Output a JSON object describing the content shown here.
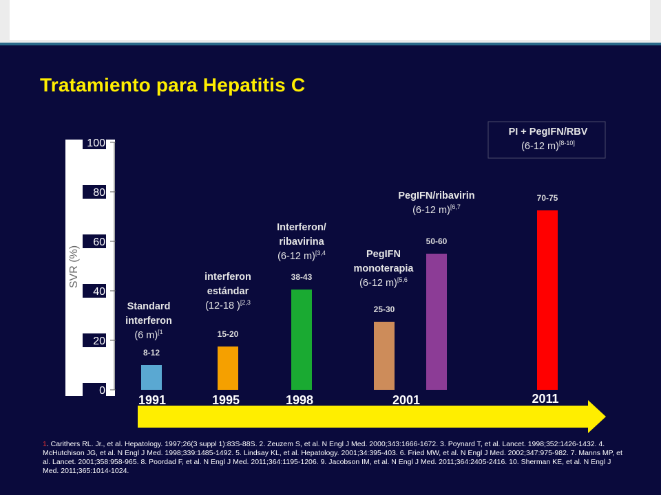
{
  "title": "Tratamiento para Hepatitis C",
  "colors": {
    "background": "#0a0a3c",
    "title": "#ffee00",
    "arrow": "#ffee00"
  },
  "chart_data": {
    "type": "bar",
    "ylabel": "SVR (%)",
    "ylim": [
      0,
      100
    ],
    "yticks": [
      0,
      20,
      40,
      60,
      80,
      100
    ],
    "categories": [
      "Standard interferon",
      "interferon estándar",
      "Interferon/ ribavirina",
      "PegIFN monoterapia",
      "PegIFN/ribavirin",
      "PI + PegIFN/RBV"
    ],
    "values": [
      10,
      17.5,
      40.5,
      27.5,
      55,
      72.5
    ],
    "value_labels": [
      "8-12",
      "15-20",
      "38-43",
      "25-30",
      "50-60",
      "70-75"
    ],
    "colors": [
      "#5aa8d2",
      "#f5a000",
      "#1aaa32",
      "#cd8c5a",
      "#8c3c96",
      "#ff0000"
    ],
    "treatments": [
      {
        "name_lines": [
          "Standard",
          "interferon"
        ],
        "duration": "(6 m)",
        "refs": "[1"
      },
      {
        "name_lines": [
          "interferon",
          "estándar"
        ],
        "duration": "(12-18 )",
        "refs": "[2,3"
      },
      {
        "name_lines": [
          "Interferon/",
          "ribavirina"
        ],
        "duration": "(6-12 m)",
        "refs": "[3,4"
      },
      {
        "name_lines": [
          "PegIFN",
          "monoterapia"
        ],
        "duration": "(6-12 m)",
        "refs": "[5,6"
      },
      {
        "name_lines": [
          "PegIFN/ribavirin"
        ],
        "duration": "(6-12 m)",
        "refs": "[6,7"
      },
      {
        "name_lines": [
          "PI + PegIFN/RBV"
        ],
        "duration": "(6-12 m)",
        "refs": "[8-10]"
      }
    ],
    "years": [
      "1991",
      "1995",
      "1998",
      "2001",
      "2011"
    ]
  },
  "references": {
    "lead_number": "1",
    "text": ". Carithers RL. Jr., et al. Hepatology. 1997;26(3 suppl 1):83S-88S. 2. Zeuzem S, et al. N Engl J Med. 2000;343:1666-1672. 3. Poynard T, et al. Lancet. 1998;352:1426-1432. 4. McHutchison JG, et al. N Engl J Med. 1998;339:1485-1492. 5. Lindsay KL, et al. Hepatology. 2001;34:395-403. 6. Fried MW, et al. N Engl J Med. 2002;347:975-982. 7. Manns MP, et al. Lancet. 2001;358:958-965. 8. Poordad F, et al. N Engl J Med. 2011;364:1195-1206. 9. Jacobson IM, et al. N Engl J Med. 2011;364:2405-2416. 10. Sherman KE, et al. N Engl J Med. 2011;365:1014-1024."
  }
}
